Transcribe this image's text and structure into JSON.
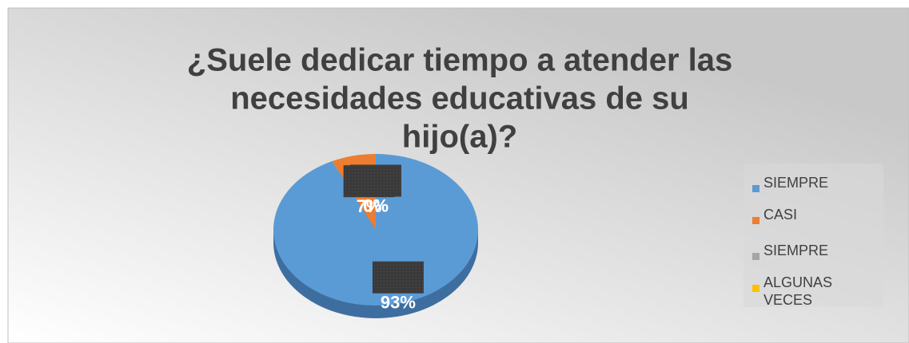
{
  "chart_data": {
    "type": "pie",
    "title": [
      "¿Suele dedicar tiempo a atender las",
      "necesidades educativas de su",
      "hijo(a)?"
    ],
    "categories": [
      "SIEMPRE",
      "CASI",
      "SIEMPRE",
      "ALGUNAS VECES"
    ],
    "values": [
      93,
      7,
      0,
      0
    ],
    "value_labels": [
      "93%",
      "7%",
      "0%",
      "0%"
    ],
    "colors": [
      "#5b9bd5",
      "#ed7d31",
      "#a5a5a5",
      "#ffc000"
    ],
    "legend": "right"
  }
}
